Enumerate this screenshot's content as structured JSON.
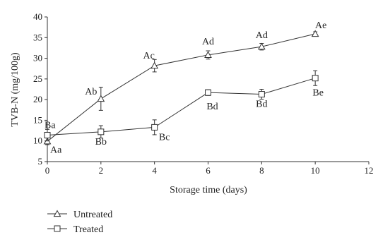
{
  "chart_data": {
    "type": "line",
    "xlabel": "Storage time (days)",
    "ylabel": "TVB-N (mg/100g)",
    "xlim": [
      0,
      12
    ],
    "ylim": [
      5,
      40
    ],
    "xticks": [
      0,
      2,
      4,
      6,
      8,
      10,
      12
    ],
    "yticks": [
      5,
      10,
      15,
      20,
      25,
      30,
      35,
      40
    ],
    "grid": false,
    "legend_position": "bottom-left",
    "series": [
      {
        "name": "Untreated",
        "marker": "triangle",
        "x": [
          0,
          2,
          4,
          6,
          8,
          10
        ],
        "y": [
          9.9,
          20.2,
          28.2,
          30.8,
          32.8,
          35.9
        ],
        "error": [
          0.8,
          2.8,
          1.5,
          1.0,
          0.8,
          0.5
        ],
        "labels": [
          "Aa",
          "Ab",
          "Ac",
          "Ad",
          "Ad",
          "Ae"
        ]
      },
      {
        "name": "Treated",
        "marker": "square",
        "x": [
          0,
          2,
          4,
          6,
          8,
          10
        ],
        "y": [
          11.4,
          12.2,
          13.3,
          21.7,
          21.3,
          25.2
        ],
        "error": [
          1.4,
          1.5,
          1.8,
          0.7,
          1.2,
          1.8
        ],
        "labels": [
          "Ba",
          "Bb",
          "Bc",
          "Bd",
          "Bd",
          "Be"
        ]
      }
    ]
  }
}
